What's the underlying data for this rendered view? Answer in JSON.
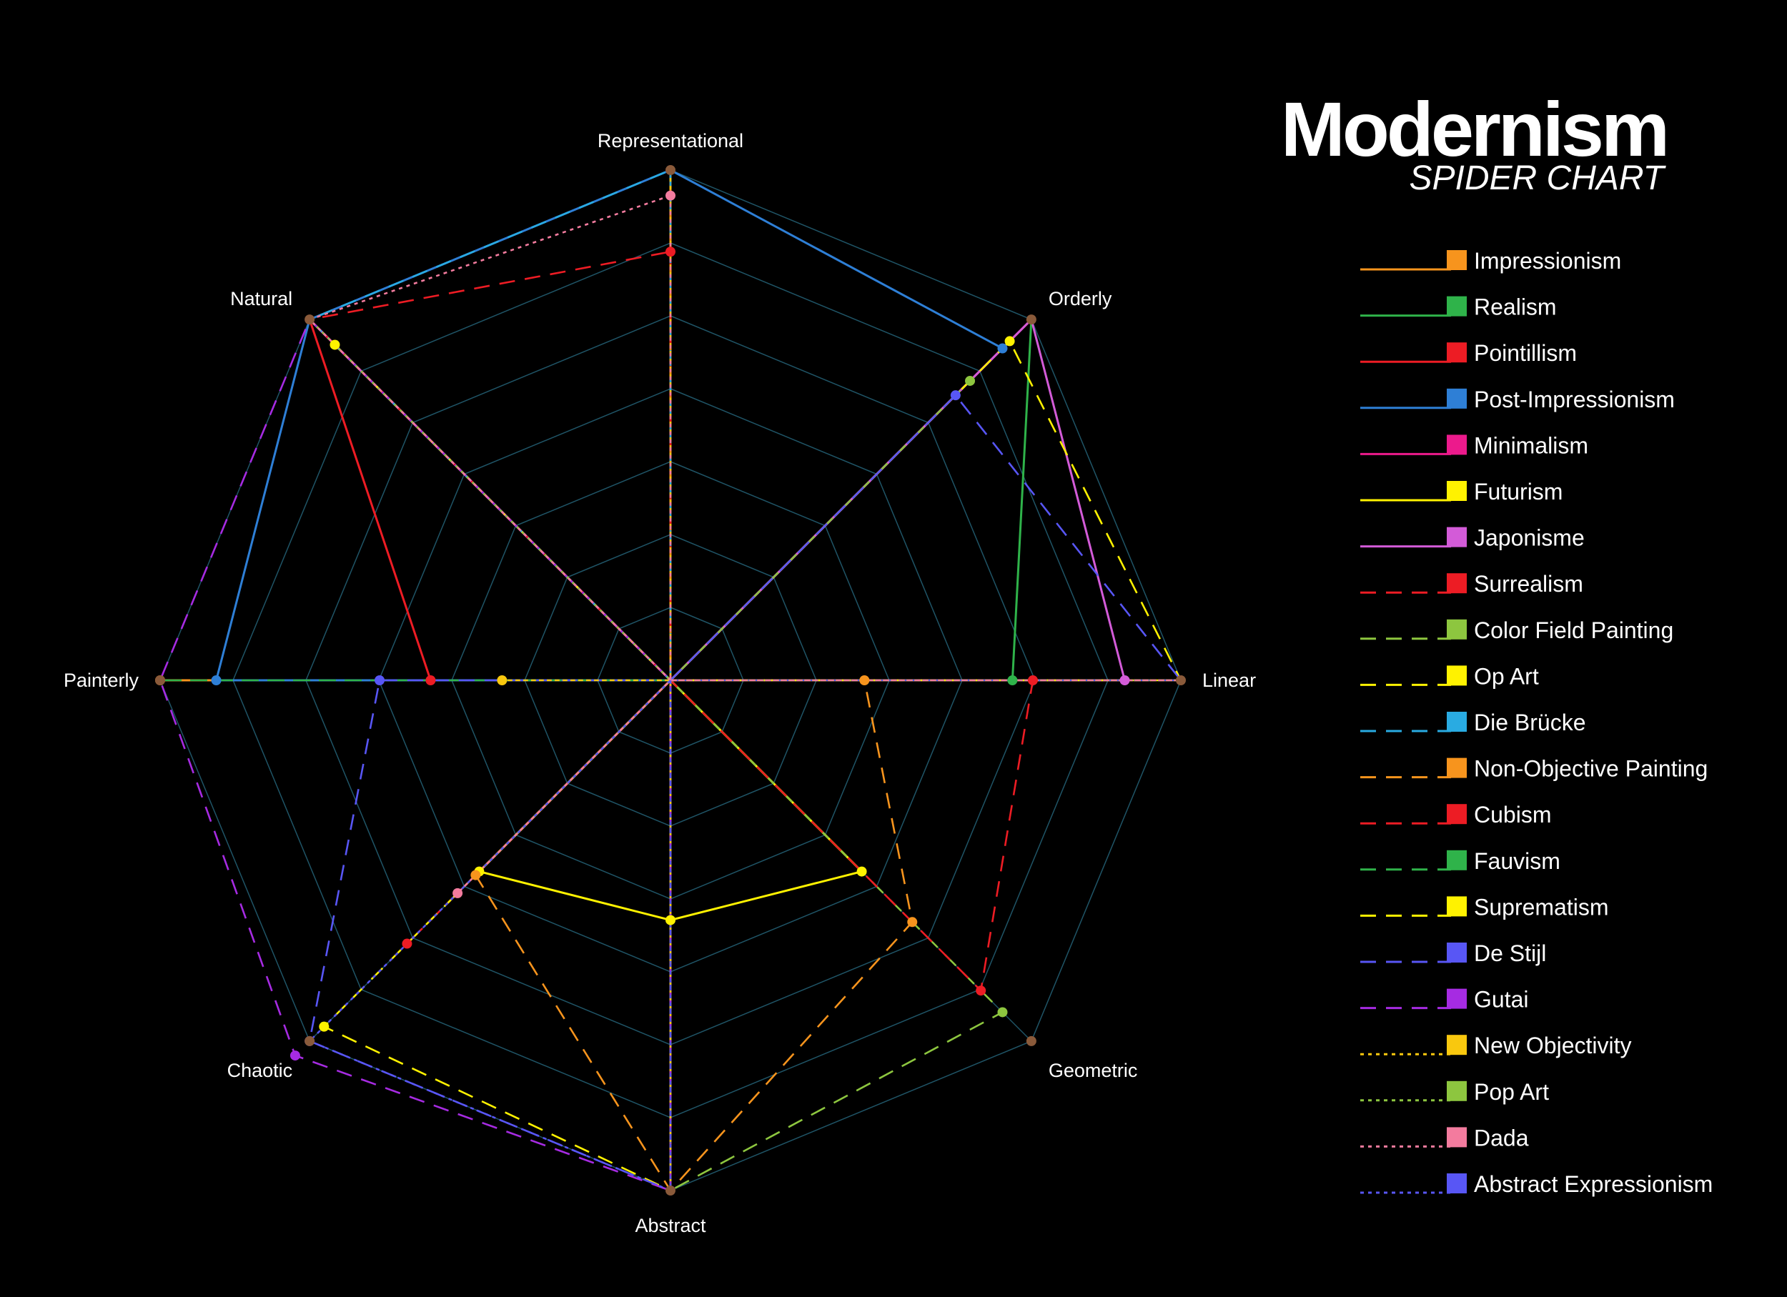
{
  "title": "Modernism",
  "subtitle": "SPIDER CHART",
  "chart_data": {
    "type": "radar",
    "axes": [
      "Representational",
      "Orderly",
      "Linear",
      "Geometric",
      "Abstract",
      "Chaotic",
      "Painterly",
      "Natural"
    ],
    "range": [
      0,
      1
    ],
    "grid": true,
    "legend_position": "right",
    "series": [
      {
        "name": "Impressionism",
        "color": "#f7941d",
        "dash": "solid",
        "values": [
          1.0,
          0.0,
          0.0,
          0.0,
          0.0,
          0.0,
          1.0,
          0.0
        ],
        "markers": [
          false,
          false,
          false,
          false,
          false,
          false,
          true,
          false
        ]
      },
      {
        "name": "Realism",
        "color": "#2fb34a",
        "dash": "solid",
        "values": [
          0.0,
          1.0,
          0.67,
          0.0,
          0.0,
          0.0,
          0.0,
          1.0
        ],
        "markers": [
          false,
          false,
          true,
          false,
          false,
          false,
          false,
          false
        ]
      },
      {
        "name": "Pointillism",
        "color": "#ed1c24",
        "dash": "solid",
        "values": [
          0.0,
          1.0,
          0.0,
          0.0,
          0.0,
          0.0,
          0.47,
          1.0
        ],
        "markers": [
          false,
          false,
          false,
          false,
          false,
          false,
          true,
          false
        ]
      },
      {
        "name": "Post-Impressionism",
        "color": "#2e7fd6",
        "dash": "solid",
        "values": [
          1.0,
          0.92,
          0.0,
          0.0,
          0.0,
          0.0,
          0.89,
          1.0
        ],
        "markers": [
          false,
          true,
          false,
          false,
          false,
          false,
          true,
          false
        ]
      },
      {
        "name": "Minimalism",
        "color": "#ec1a8c",
        "dash": "solid",
        "values": [
          0.0,
          1.0,
          0.0,
          0.0,
          1.0,
          0.0,
          0.0,
          0.0
        ],
        "markers": [
          false,
          false,
          false,
          false,
          false,
          false,
          false,
          false
        ]
      },
      {
        "name": "Futurism",
        "color": "#fff200",
        "dash": "solid",
        "values": [
          0.0,
          0.0,
          0.0,
          0.53,
          0.47,
          0.53,
          0.0,
          0.0
        ],
        "markers": [
          false,
          false,
          false,
          true,
          true,
          true,
          false,
          false
        ]
      },
      {
        "name": "Japonisme",
        "color": "#d35bd8",
        "dash": "solid",
        "values": [
          0.0,
          1.0,
          0.89,
          0.0,
          0.0,
          0.0,
          0.0,
          1.0
        ],
        "markers": [
          false,
          false,
          true,
          false,
          false,
          false,
          false,
          false
        ]
      },
      {
        "name": "Surrealism",
        "color": "#ed1c24",
        "dash": "dash",
        "values": [
          0.84,
          0.0,
          0.0,
          0.0,
          0.0,
          0.0,
          0.0,
          1.0
        ],
        "markers": [
          true,
          false,
          false,
          false,
          false,
          false,
          false,
          false
        ]
      },
      {
        "name": "Color Field Painting",
        "color": "#8dc63f",
        "dash": "dash",
        "values": [
          0.0,
          0.83,
          0.0,
          0.92,
          1.0,
          0.0,
          0.0,
          0.0
        ],
        "markers": [
          false,
          true,
          false,
          true,
          false,
          false,
          false,
          false
        ]
      },
      {
        "name": "Op Art",
        "color": "#fff200",
        "dash": "dash",
        "values": [
          0.0,
          0.94,
          1.0,
          0.0,
          1.0,
          0.0,
          0.0,
          0.93
        ],
        "markers": [
          false,
          true,
          false,
          false,
          false,
          false,
          false,
          true
        ]
      },
      {
        "name": "Die Brücke",
        "color": "#29abe2",
        "dash": "dash",
        "values": [
          1.0,
          0.0,
          0.0,
          0.0,
          0.0,
          0.0,
          0.0,
          1.0
        ],
        "markers": [
          false,
          false,
          false,
          false,
          false,
          false,
          false,
          false
        ]
      },
      {
        "name": "Non-Objective Painting",
        "color": "#f7941d",
        "dash": "dash",
        "values": [
          0.0,
          0.0,
          0.38,
          0.67,
          1.0,
          0.54,
          0.0,
          0.0
        ],
        "markers": [
          false,
          false,
          true,
          true,
          false,
          true,
          false,
          false
        ]
      },
      {
        "name": "Cubism",
        "color": "#ed1c24",
        "dash": "dash",
        "values": [
          0.0,
          0.0,
          0.71,
          0.86,
          0.0,
          0.73,
          0.0,
          0.0
        ],
        "markers": [
          false,
          false,
          true,
          true,
          false,
          true,
          false,
          false
        ]
      },
      {
        "name": "Fauvism",
        "color": "#2fb34a",
        "dash": "dash",
        "values": [
          0.0,
          0.0,
          0.0,
          0.0,
          0.0,
          0.0,
          1.0,
          0.0
        ],
        "markers": [
          false,
          false,
          false,
          false,
          false,
          false,
          false,
          false
        ]
      },
      {
        "name": "Suprematism",
        "color": "#fff200",
        "dash": "dash",
        "values": [
          0.0,
          0.0,
          1.0,
          0.0,
          1.0,
          0.96,
          0.0,
          0.0
        ],
        "markers": [
          false,
          false,
          false,
          false,
          false,
          true,
          false,
          false
        ]
      },
      {
        "name": "De Stijl",
        "color": "#5856f5",
        "dash": "dash",
        "values": [
          0.0,
          0.79,
          1.0,
          0.0,
          1.0,
          1.0,
          0.57,
          0.0
        ],
        "markers": [
          false,
          true,
          false,
          false,
          false,
          true,
          true,
          false
        ]
      },
      {
        "name": "Gutai",
        "color": "#a62be2",
        "dash": "dash",
        "values": [
          0.0,
          0.0,
          0.0,
          0.0,
          1.0,
          1.04,
          1.0,
          1.0
        ],
        "markers": [
          false,
          false,
          false,
          false,
          false,
          true,
          false,
          false
        ]
      },
      {
        "name": "New Objectivity",
        "color": "#f9c80e",
        "dash": "dot",
        "values": [
          1.0,
          0.0,
          0.0,
          0.0,
          1.0,
          0.0,
          0.33,
          0.0
        ],
        "markers": [
          false,
          false,
          false,
          false,
          false,
          false,
          true,
          false
        ]
      },
      {
        "name": "Pop Art",
        "color": "#8dc63f",
        "dash": "dot",
        "values": [
          0.0,
          0.0,
          1.0,
          0.0,
          0.0,
          0.0,
          0.0,
          1.0
        ],
        "markers": [
          false,
          false,
          false,
          false,
          false,
          false,
          false,
          false
        ]
      },
      {
        "name": "Dada",
        "color": "#f37b9e",
        "dash": "dot",
        "values": [
          0.95,
          0.0,
          1.0,
          0.0,
          0.0,
          0.59,
          0.0,
          1.0
        ],
        "markers": [
          true,
          false,
          false,
          false,
          false,
          true,
          false,
          false
        ]
      },
      {
        "name": "Abstract Expressionism",
        "color": "#5856f5",
        "dash": "dot",
        "values": [
          0.0,
          0.0,
          0.0,
          0.0,
          1.0,
          1.0,
          0.0,
          0.0
        ],
        "markers": [
          false,
          false,
          false,
          false,
          false,
          false,
          false,
          false
        ]
      }
    ]
  }
}
